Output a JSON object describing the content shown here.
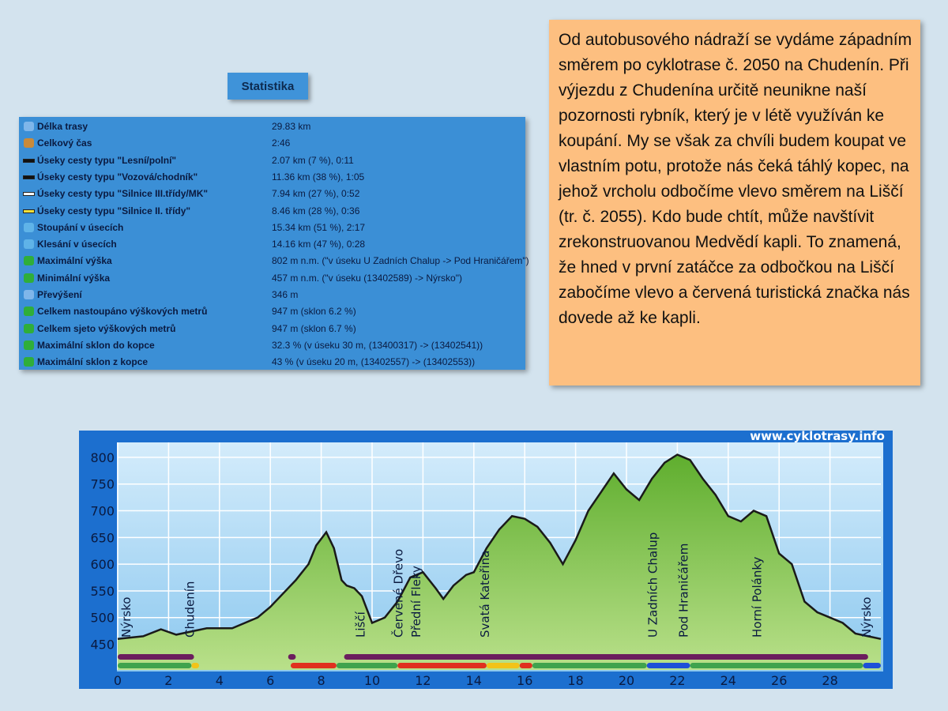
{
  "statistics": {
    "title": "Statistika",
    "rows": [
      [
        "Délka trasy",
        "29.83 km"
      ],
      [
        "Celkový čas",
        "2:46"
      ],
      [
        "Úseky cesty typu \"Lesní/polní\"",
        "2.07 km (7 %), 0:11"
      ],
      [
        "Úseky cesty typu \"Vozová/chodník\"",
        "11.36 km (38 %), 1:05"
      ],
      [
        "Úseky cesty typu \"Silnice III.třídy/MK\"",
        "7.94 km (27 %), 0:52"
      ],
      [
        "Úseky cesty typu \"Silnice II. třídy\"",
        "8.46 km (28 %), 0:36"
      ],
      [
        "Stoupání v úsecích",
        "15.34 km (51 %), 2:17"
      ],
      [
        "Klesání v úsecích",
        "14.16 km (47 %), 0:28"
      ],
      [
        "Maximální výška",
        "802 m n.m. (\"v úseku U Zadních Chalup -> Pod Hraničářem\")"
      ],
      [
        "Minimální výška",
        "457 m n.m. (\"v úseku (13402589) -> Nýrsko\")"
      ],
      [
        "Převýšení",
        "346 m"
      ],
      [
        "Celkem nastoupáno výškových metrů",
        "947 m (sklon 6.2 %)"
      ],
      [
        "Celkem sjeto výškových metrů",
        "947 m (sklon 6.7 %)"
      ],
      [
        "Maximální sklon do kopce",
        "32.3 % (v úseku 30 m, (13400317) -> (13402541))"
      ],
      [
        "Maximální sklon z kopce",
        "43 % (v úseku 20 m, (13402557) -> (13402553))"
      ]
    ]
  },
  "description": "Od autobusového nádraží se vydáme západním směrem po cyklotrase č. 2050 na Chudenín. Při výjezdu z Chudenína určitě neunikne naší pozornosti rybník, který je v létě využíván ke koupání. My se však za chvíli budem koupat ve vlastním potu, protože nás čeká táhlý kopec, na jehož vrcholu odbočíme vlevo směrem na Liščí (tr. č. 2055). Kdo bude chtít, může navštívit zrekonstruovanou Medvědí kapli. To znamená, že hned v první zatáčce za odbočkou na Liščí zabočíme vlevo a červená turistická značka nás dovede až ke kapli.",
  "chart_data": {
    "type": "area",
    "watermark": "www.cyklotrasy.info",
    "x": [
      0,
      1,
      1.7,
      2.3,
      3,
      3.5,
      4.5,
      5,
      5.5,
      6,
      6.5,
      7,
      7.5,
      7.8,
      8.2,
      8.5,
      8.8,
      9,
      9.3,
      9.6,
      10,
      10.5,
      11,
      11.5,
      12,
      12.5,
      12.8,
      13.2,
      13.7,
      14,
      14.5,
      15,
      15.5,
      16,
      16.5,
      17,
      17.5,
      18,
      18.5,
      19,
      19.5,
      20,
      20.5,
      21,
      21.5,
      22,
      22.5,
      23,
      23.5,
      24,
      24.5,
      25,
      25.5,
      26,
      26.5,
      27,
      27.5,
      28,
      28.5,
      29,
      29.5,
      30
    ],
    "values": [
      460,
      465,
      478,
      468,
      475,
      480,
      480,
      490,
      500,
      520,
      545,
      570,
      600,
      635,
      660,
      630,
      570,
      560,
      555,
      540,
      490,
      500,
      530,
      575,
      585,
      555,
      535,
      560,
      580,
      585,
      630,
      665,
      690,
      685,
      670,
      640,
      600,
      645,
      700,
      735,
      770,
      740,
      720,
      760,
      790,
      805,
      795,
      760,
      730,
      690,
      680,
      700,
      690,
      620,
      600,
      530,
      510,
      500,
      490,
      470,
      465,
      460
    ],
    "color": "#7fc24a",
    "line_color": "#1a1a1a",
    "xlim": [
      0,
      30
    ],
    "ylim": [
      402,
      828
    ],
    "xticks": [
      0,
      2,
      4,
      6,
      8,
      10,
      12,
      14,
      16,
      18,
      20,
      22,
      24,
      26,
      28
    ],
    "yticks": [
      450,
      500,
      550,
      600,
      650,
      700,
      750,
      800
    ],
    "grid": true,
    "annotations": [
      {
        "text": "Nýrsko",
        "x": 0.5
      },
      {
        "text": "Chudenín",
        "x": 3
      },
      {
        "text": "Liščí",
        "x": 9.7
      },
      {
        "text": "Červené Dřevo",
        "x": 11.2
      },
      {
        "text": "Přední Fleky",
        "x": 11.9
      },
      {
        "text": "Svatá Kateřina",
        "x": 14.6
      },
      {
        "text": "U Zadních Chalup",
        "x": 21.2
      },
      {
        "text": "Pod Hraničářem",
        "x": 22.4
      },
      {
        "text": "Horní Polánky",
        "x": 25.3
      },
      {
        "text": "Nýrsko",
        "x": 29.6
      }
    ],
    "route_bars": [
      {
        "from": 0,
        "to": 3,
        "row": 0,
        "color": "#6b1e5e"
      },
      {
        "from": 6.7,
        "to": 7,
        "row": 0,
        "color": "#6b1e5e"
      },
      {
        "from": 8.9,
        "to": 29.5,
        "row": 0,
        "color": "#6b1e5e"
      },
      {
        "from": 0,
        "to": 2.9,
        "row": 1,
        "color": "#3fa34d"
      },
      {
        "from": 2.9,
        "to": 3.2,
        "row": 1,
        "color": "#f2c318"
      },
      {
        "from": 6.8,
        "to": 8.6,
        "row": 1,
        "color": "#e0301e"
      },
      {
        "from": 8.6,
        "to": 11,
        "row": 1,
        "color": "#3fa34d"
      },
      {
        "from": 11,
        "to": 14.5,
        "row": 1,
        "color": "#e0301e"
      },
      {
        "from": 14.5,
        "to": 15.8,
        "row": 1,
        "color": "#f2c318"
      },
      {
        "from": 15.8,
        "to": 16.3,
        "row": 1,
        "color": "#e0301e"
      },
      {
        "from": 16.3,
        "to": 20.8,
        "row": 1,
        "color": "#3fa34d"
      },
      {
        "from": 20.8,
        "to": 22.5,
        "row": 1,
        "color": "#1d4fd8"
      },
      {
        "from": 22.5,
        "to": 29.3,
        "row": 1,
        "color": "#3fa34d"
      },
      {
        "from": 29.3,
        "to": 30,
        "row": 1,
        "color": "#1d4fd8"
      }
    ]
  }
}
